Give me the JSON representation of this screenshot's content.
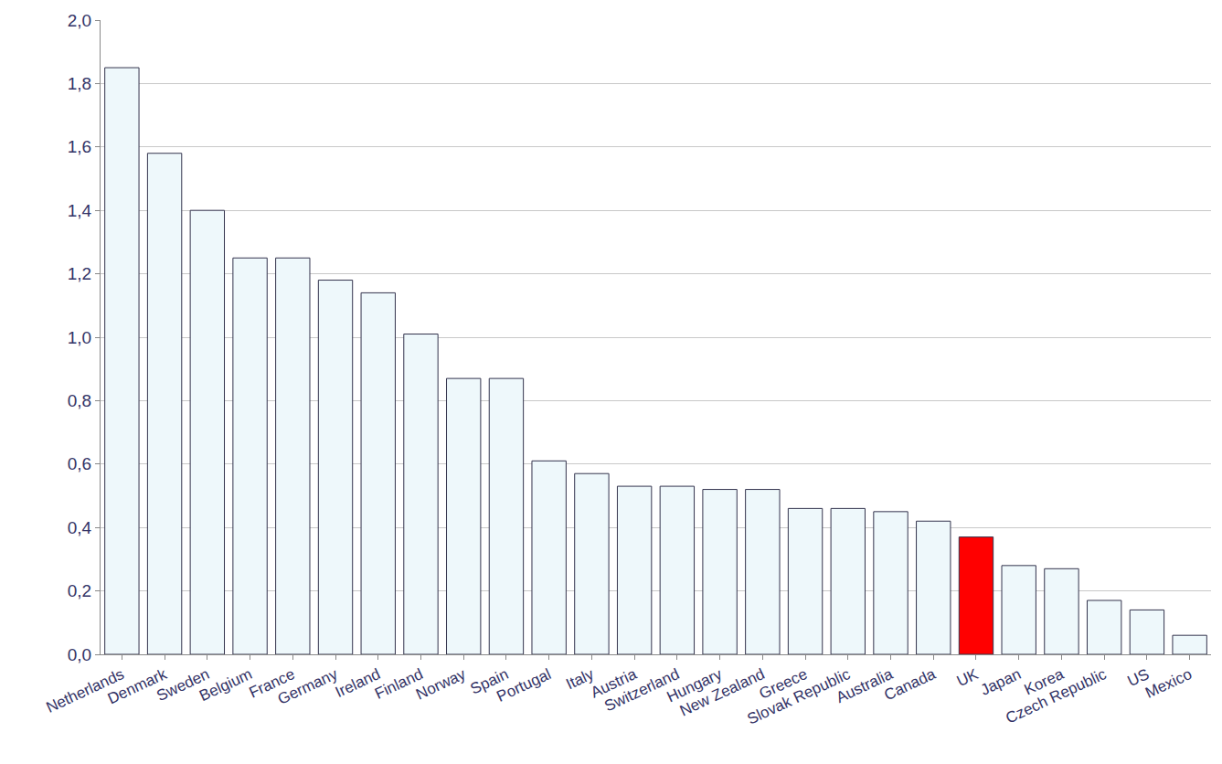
{
  "chart_data": {
    "type": "bar",
    "categories": [
      "Netherlands",
      "Denmark",
      "Sweden",
      "Belgium",
      "France",
      "Germany",
      "Ireland",
      "Finland",
      "Norway",
      "Spain",
      "Portugal",
      "Italy",
      "Austria",
      "Switzerland",
      "Hungary",
      "New Zealand",
      "Greece",
      "Slovak Republic",
      "Australia",
      "Canada",
      "UK",
      "Japan",
      "Korea",
      "Czech Republic",
      "US",
      "Mexico"
    ],
    "values": [
      1.85,
      1.58,
      1.4,
      1.25,
      1.25,
      1.18,
      1.14,
      1.01,
      0.87,
      0.87,
      0.61,
      0.57,
      0.53,
      0.53,
      0.52,
      0.52,
      0.46,
      0.46,
      0.45,
      0.42,
      0.37,
      0.28,
      0.27,
      0.17,
      0.14,
      0.06
    ],
    "colors": [
      "#eef8fb",
      "#eef8fb",
      "#eef8fb",
      "#eef8fb",
      "#eef8fb",
      "#eef8fb",
      "#eef8fb",
      "#eef8fb",
      "#eef8fb",
      "#eef8fb",
      "#eef8fb",
      "#eef8fb",
      "#eef8fb",
      "#eef8fb",
      "#eef8fb",
      "#eef8fb",
      "#eef8fb",
      "#eef8fb",
      "#eef8fb",
      "#eef8fb",
      "#ff0000",
      "#eef8fb",
      "#eef8fb",
      "#eef8fb",
      "#eef8fb",
      "#eef8fb"
    ],
    "ylim": [
      0,
      2
    ],
    "yticks": [
      {
        "value": 0,
        "label": "0,0"
      },
      {
        "value": 0.2,
        "label": "0,2"
      },
      {
        "value": 0.4,
        "label": "0,4"
      },
      {
        "value": 0.6,
        "label": "0,6"
      },
      {
        "value": 0.8,
        "label": "0,8"
      },
      {
        "value": 1.0,
        "label": "1,0"
      },
      {
        "value": 1.2,
        "label": "1,2"
      },
      {
        "value": 1.4,
        "label": "1,4"
      },
      {
        "value": 1.6,
        "label": "1,6"
      },
      {
        "value": 1.8,
        "label": "1,8"
      },
      {
        "value": 2.0,
        "label": "2,0"
      }
    ],
    "grid": true
  }
}
